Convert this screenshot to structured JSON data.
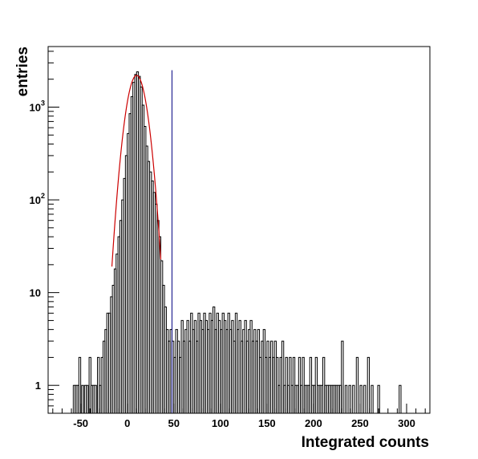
{
  "chart_data": {
    "type": "histogram",
    "xlabel": "Integrated counts",
    "ylabel": "entries",
    "xlim": [
      -85,
      325
    ],
    "ylim": [
      0.5,
      4500
    ],
    "yscale": "log",
    "grid": false,
    "legend": "none",
    "x_ticks": [
      -50,
      0,
      50,
      100,
      150,
      200,
      250,
      300
    ],
    "x_tick_labels": [
      "-50",
      "0",
      "50",
      "100",
      "150",
      "200",
      "250",
      "300"
    ],
    "y_ticks": [
      {
        "value": 1,
        "base": "1",
        "exp": ""
      },
      {
        "value": 10,
        "base": "10",
        "exp": ""
      },
      {
        "value": 100,
        "base": "10",
        "exp": "2"
      },
      {
        "value": 1000,
        "base": "10",
        "exp": "3"
      }
    ],
    "series": [
      {
        "kind": "histogram",
        "color": "#000000",
        "points": [
          [
            -57,
            1
          ],
          [
            -55,
            1
          ],
          [
            -53,
            1
          ],
          [
            -51,
            2
          ],
          [
            -48,
            1
          ],
          [
            -45,
            1
          ],
          [
            -43,
            1
          ],
          [
            -40,
            2
          ],
          [
            -38,
            1
          ],
          [
            -36,
            1
          ],
          [
            -34,
            1
          ],
          [
            -31,
            2
          ],
          [
            -29,
            1
          ],
          [
            -27,
            2
          ],
          [
            -25,
            3
          ],
          [
            -23,
            4
          ],
          [
            -21,
            6
          ],
          [
            -19,
            6
          ],
          [
            -17,
            9
          ],
          [
            -15,
            12
          ],
          [
            -13,
            18
          ],
          [
            -11,
            26
          ],
          [
            -9,
            40
          ],
          [
            -7,
            60
          ],
          [
            -5,
            100
          ],
          [
            -3,
            170
          ],
          [
            -1,
            300
          ],
          [
            1,
            520
          ],
          [
            3,
            850
          ],
          [
            5,
            1300
          ],
          [
            7,
            1850
          ],
          [
            9,
            2250
          ],
          [
            11,
            2400
          ],
          [
            13,
            2150
          ],
          [
            15,
            1650
          ],
          [
            17,
            1050
          ],
          [
            19,
            620
          ],
          [
            21,
            380
          ],
          [
            23,
            260
          ],
          [
            25,
            200
          ],
          [
            27,
            160
          ],
          [
            29,
            120
          ],
          [
            31,
            90
          ],
          [
            33,
            60
          ],
          [
            35,
            40
          ],
          [
            37,
            22
          ],
          [
            39,
            12
          ],
          [
            41,
            7
          ],
          [
            43,
            4
          ],
          [
            45,
            3
          ],
          [
            47,
            4
          ],
          [
            49,
            3
          ],
          [
            51,
            2
          ],
          [
            53,
            4
          ],
          [
            55,
            3
          ],
          [
            57,
            2
          ],
          [
            59,
            5
          ],
          [
            61,
            3
          ],
          [
            63,
            4
          ],
          [
            65,
            5
          ],
          [
            67,
            3
          ],
          [
            69,
            6
          ],
          [
            71,
            4
          ],
          [
            73,
            5
          ],
          [
            75,
            3
          ],
          [
            77,
            6
          ],
          [
            79,
            5
          ],
          [
            81,
            4
          ],
          [
            83,
            6
          ],
          [
            85,
            5
          ],
          [
            87,
            4
          ],
          [
            89,
            6
          ],
          [
            91,
            5
          ],
          [
            93,
            7
          ],
          [
            95,
            4
          ],
          [
            97,
            6
          ],
          [
            99,
            5
          ],
          [
            101,
            4
          ],
          [
            103,
            6
          ],
          [
            105,
            5
          ],
          [
            107,
            4
          ],
          [
            109,
            6
          ],
          [
            111,
            4
          ],
          [
            113,
            5
          ],
          [
            115,
            3
          ],
          [
            117,
            6
          ],
          [
            119,
            4
          ],
          [
            121,
            5
          ],
          [
            123,
            3
          ],
          [
            125,
            4
          ],
          [
            127,
            5
          ],
          [
            129,
            3
          ],
          [
            131,
            4
          ],
          [
            133,
            5
          ],
          [
            135,
            3
          ],
          [
            137,
            4
          ],
          [
            139,
            3
          ],
          [
            141,
            4
          ],
          [
            143,
            2
          ],
          [
            145,
            3
          ],
          [
            147,
            4
          ],
          [
            149,
            2
          ],
          [
            151,
            3
          ],
          [
            153,
            2
          ],
          [
            155,
            3
          ],
          [
            157,
            2
          ],
          [
            159,
            3
          ],
          [
            161,
            2
          ],
          [
            163,
            1
          ],
          [
            165,
            2
          ],
          [
            167,
            3
          ],
          [
            169,
            1
          ],
          [
            171,
            2
          ],
          [
            173,
            1
          ],
          [
            175,
            2
          ],
          [
            177,
            1
          ],
          [
            179,
            2
          ],
          [
            181,
            1
          ],
          [
            183,
            1
          ],
          [
            185,
            2
          ],
          [
            187,
            1
          ],
          [
            189,
            2
          ],
          [
            191,
            1
          ],
          [
            193,
            1
          ],
          [
            195,
            1
          ],
          [
            197,
            2
          ],
          [
            199,
            1
          ],
          [
            201,
            1
          ],
          [
            203,
            2
          ],
          [
            205,
            1
          ],
          [
            207,
            1
          ],
          [
            209,
            1
          ],
          [
            211,
            2
          ],
          [
            213,
            1
          ],
          [
            215,
            1
          ],
          [
            217,
            1
          ],
          [
            219,
            1
          ],
          [
            221,
            1
          ],
          [
            223,
            1
          ],
          [
            225,
            1
          ],
          [
            227,
            1
          ],
          [
            229,
            1
          ],
          [
            231,
            3
          ],
          [
            235,
            1
          ],
          [
            239,
            1
          ],
          [
            243,
            1
          ],
          [
            247,
            2
          ],
          [
            251,
            1
          ],
          [
            255,
            1
          ],
          [
            259,
            2
          ],
          [
            263,
            1
          ],
          [
            270,
            1
          ],
          [
            293,
            1
          ]
        ]
      },
      {
        "kind": "fit",
        "color": "#cc0000",
        "peak": 2200,
        "mean": 10,
        "sigma": 8.6,
        "x_range": [
          -16.5,
          36
        ]
      },
      {
        "kind": "threshold",
        "color": "#000080",
        "x": 48,
        "top_y": 2500
      }
    ]
  }
}
